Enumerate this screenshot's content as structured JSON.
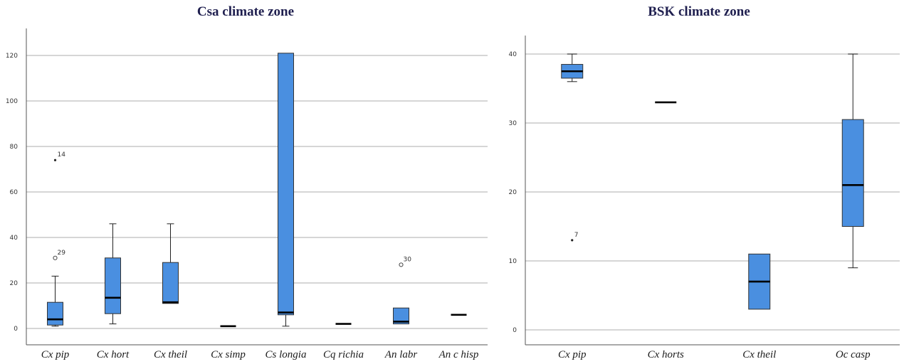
{
  "chart_data": [
    {
      "type": "box",
      "title": "Csa climate zone",
      "ylim": [
        0,
        125
      ],
      "yticks": [
        0,
        20,
        40,
        60,
        80,
        100,
        120
      ],
      "grid": true,
      "box_color": "#4a8fe0",
      "categories": [
        "Cx pip",
        "Cx hort",
        "Cx theil",
        "Cx simp",
        "Cs longia",
        "Cq richia",
        "An labr",
        "An c hisp"
      ],
      "boxes": [
        {
          "min": 1,
          "q1": 1.5,
          "median": 4,
          "q3": 11.5,
          "max": 23
        },
        {
          "min": 2,
          "q1": 6.5,
          "median": 13.5,
          "q3": 31,
          "max": 46
        },
        {
          "min": 11,
          "q1": 11,
          "median": 11.5,
          "q3": 29,
          "max": 46
        },
        {
          "min": 1,
          "q1": 1,
          "median": 1,
          "q3": 1,
          "max": 1
        },
        {
          "min": 1,
          "q1": 6,
          "median": 7,
          "q3": 121,
          "max": 121
        },
        {
          "min": 2,
          "q1": 2,
          "median": 2,
          "q3": 2,
          "max": 2
        },
        {
          "min": 2,
          "q1": 2,
          "median": 3,
          "q3": 9,
          "max": 9
        },
        {
          "min": 6,
          "q1": 6,
          "median": 6,
          "q3": 6,
          "max": 6
        }
      ],
      "outliers": [
        {
          "category": 0,
          "value": 74,
          "marker": "*",
          "label": "14"
        },
        {
          "category": 0,
          "value": 31,
          "marker": "o",
          "label": "29"
        },
        {
          "category": 6,
          "value": 28,
          "marker": "o",
          "label": "30"
        }
      ]
    },
    {
      "type": "box",
      "title": "BSK climate zone",
      "ylim": [
        -1,
        41.5
      ],
      "yticks": [
        0,
        10,
        20,
        30,
        40
      ],
      "grid": true,
      "box_color": "#4a8fe0",
      "categories": [
        "Cx pip",
        "Cx horts",
        "Cx theil",
        "Oc casp"
      ],
      "boxes": [
        {
          "min": 36,
          "q1": 36.5,
          "median": 37.5,
          "q3": 38.5,
          "max": 40
        },
        {
          "min": 33,
          "q1": 33,
          "median": 33,
          "q3": 33,
          "max": 33
        },
        {
          "min": 3,
          "q1": 3,
          "median": 7,
          "q3": 11,
          "max": 11
        },
        {
          "min": 9,
          "q1": 15,
          "median": 21,
          "q3": 30.5,
          "max": 40
        }
      ],
      "outliers": [
        {
          "category": 0,
          "value": 13,
          "marker": "*",
          "label": "7"
        }
      ]
    }
  ]
}
